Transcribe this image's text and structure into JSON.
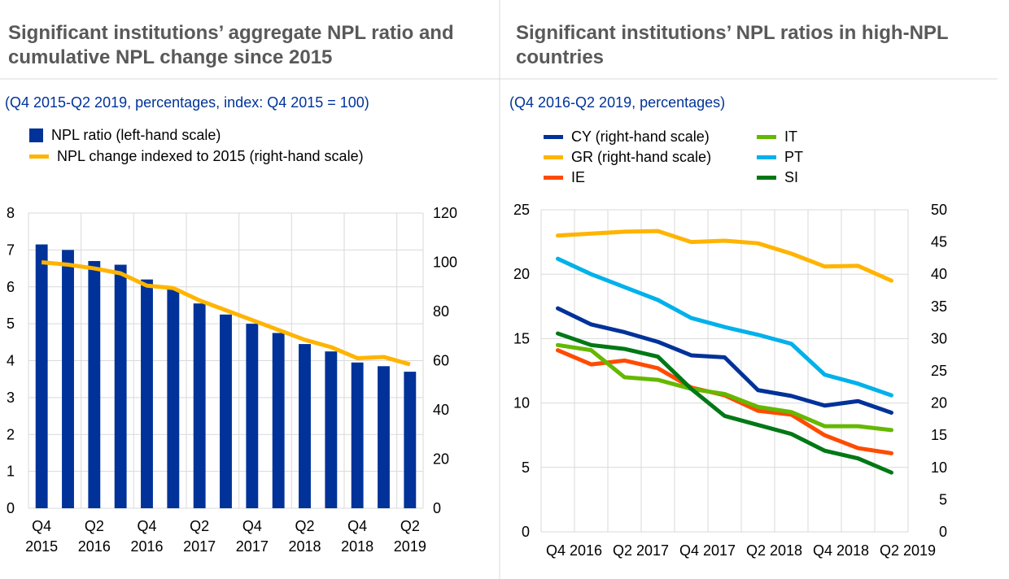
{
  "chart_data": [
    {
      "type": "bar+line",
      "title": "Significant institutions’ aggregate NPL ratio and cumulative NPL change since 2015",
      "subtitle": "(Q4 2015-Q2 2019, percentages, index: Q4 2015 = 100)",
      "categories": [
        "Q4 2015",
        "Q1 2016",
        "Q2 2016",
        "Q3 2016",
        "Q4 2016",
        "Q1 2017",
        "Q2 2017",
        "Q3 2017",
        "Q4 2017",
        "Q1 2018",
        "Q2 2018",
        "Q3 2018",
        "Q4 2018",
        "Q1 2019",
        "Q2 2019"
      ],
      "x_tick_labels": [
        [
          "Q4",
          "2015"
        ],
        [
          "Q2",
          "2016"
        ],
        [
          "Q4",
          "2016"
        ],
        [
          "Q2",
          "2017"
        ],
        [
          "Q4",
          "2017"
        ],
        [
          "Q2",
          "2018"
        ],
        [
          "Q4",
          "2018"
        ],
        [
          "Q2",
          "2019"
        ]
      ],
      "series": [
        {
          "name": "NPL ratio (left-hand scale)",
          "type": "bar",
          "axis": "left",
          "color": "#003299",
          "values": [
            7.15,
            7.0,
            6.7,
            6.6,
            6.2,
            5.95,
            5.55,
            5.25,
            5.0,
            4.75,
            4.45,
            4.25,
            3.95,
            3.85,
            3.7
          ]
        },
        {
          "name": "NPL change indexed to 2015 (right-hand scale)",
          "type": "line",
          "axis": "right",
          "color": "#FFB400",
          "values": [
            100,
            99,
            97.5,
            95.5,
            90.5,
            89.5,
            84.5,
            80.5,
            76.5,
            72.5,
            68.5,
            65.5,
            61,
            61.5,
            58.5
          ]
        }
      ],
      "ylim_left": [
        0,
        8
      ],
      "yticks_left": [
        0,
        1,
        2,
        3,
        4,
        5,
        6,
        7,
        8
      ],
      "ylim_right": [
        0,
        120
      ],
      "yticks_right": [
        0,
        20,
        40,
        60,
        80,
        100,
        120
      ],
      "grid": true,
      "legend": "top-left"
    },
    {
      "type": "line",
      "title": "Significant institutions’ NPL ratios in high-NPL countries",
      "subtitle": "(Q4 2016-Q2 2019, percentages)",
      "categories": [
        "Q4 2016",
        "Q1 2017",
        "Q2 2017",
        "Q3 2017",
        "Q4 2017",
        "Q1 2018",
        "Q2 2018",
        "Q3 2018",
        "Q4 2018",
        "Q1 2019",
        "Q2 2019"
      ],
      "x_tick_labels": [
        "Q4 2016",
        "Q2 2017",
        "Q4 2017",
        "Q2 2018",
        "Q4 2018",
        "Q2 2019"
      ],
      "series": [
        {
          "name": "CY (right-hand scale)",
          "axis": "right",
          "color": "#003299",
          "values": [
            34.7,
            32.2,
            31,
            29.5,
            27.4,
            27.1,
            22,
            21.1,
            19.6,
            20.3,
            18.5
          ]
        },
        {
          "name": "GR (right-hand scale)",
          "axis": "right",
          "color": "#FFB400",
          "values": [
            46,
            46.3,
            46.6,
            46.7,
            45,
            45.2,
            44.8,
            43.2,
            41.2,
            41.3,
            39
          ]
        },
        {
          "name": "IE",
          "axis": "left",
          "color": "#FF4B00",
          "values": [
            14.1,
            13,
            13.3,
            12.7,
            11.2,
            10.6,
            9.4,
            9.1,
            7.5,
            6.5,
            6.1
          ]
        },
        {
          "name": "IT",
          "axis": "left",
          "color": "#65B800",
          "values": [
            14.5,
            14.1,
            12,
            11.8,
            11.1,
            10.7,
            9.7,
            9.3,
            8.2,
            8.2,
            7.9
          ]
        },
        {
          "name": "PT",
          "axis": "left",
          "color": "#00B1EA",
          "values": [
            21.2,
            20,
            19,
            18,
            16.6,
            15.9,
            15.3,
            14.6,
            12.2,
            11.5,
            10.6
          ]
        },
        {
          "name": "SI",
          "axis": "left",
          "color": "#007816",
          "values": [
            15.4,
            14.5,
            14.2,
            13.6,
            11.1,
            9,
            8.3,
            7.6,
            6.3,
            5.7,
            4.6
          ]
        }
      ],
      "ylim_left": [
        0,
        25
      ],
      "yticks_left": [
        0,
        5,
        10,
        15,
        20,
        25
      ],
      "ylim_right": [
        0,
        50
      ],
      "yticks_right": [
        0,
        5,
        10,
        15,
        20,
        25,
        30,
        35,
        40,
        45,
        50
      ],
      "grid": true,
      "legend": "top-left"
    }
  ]
}
